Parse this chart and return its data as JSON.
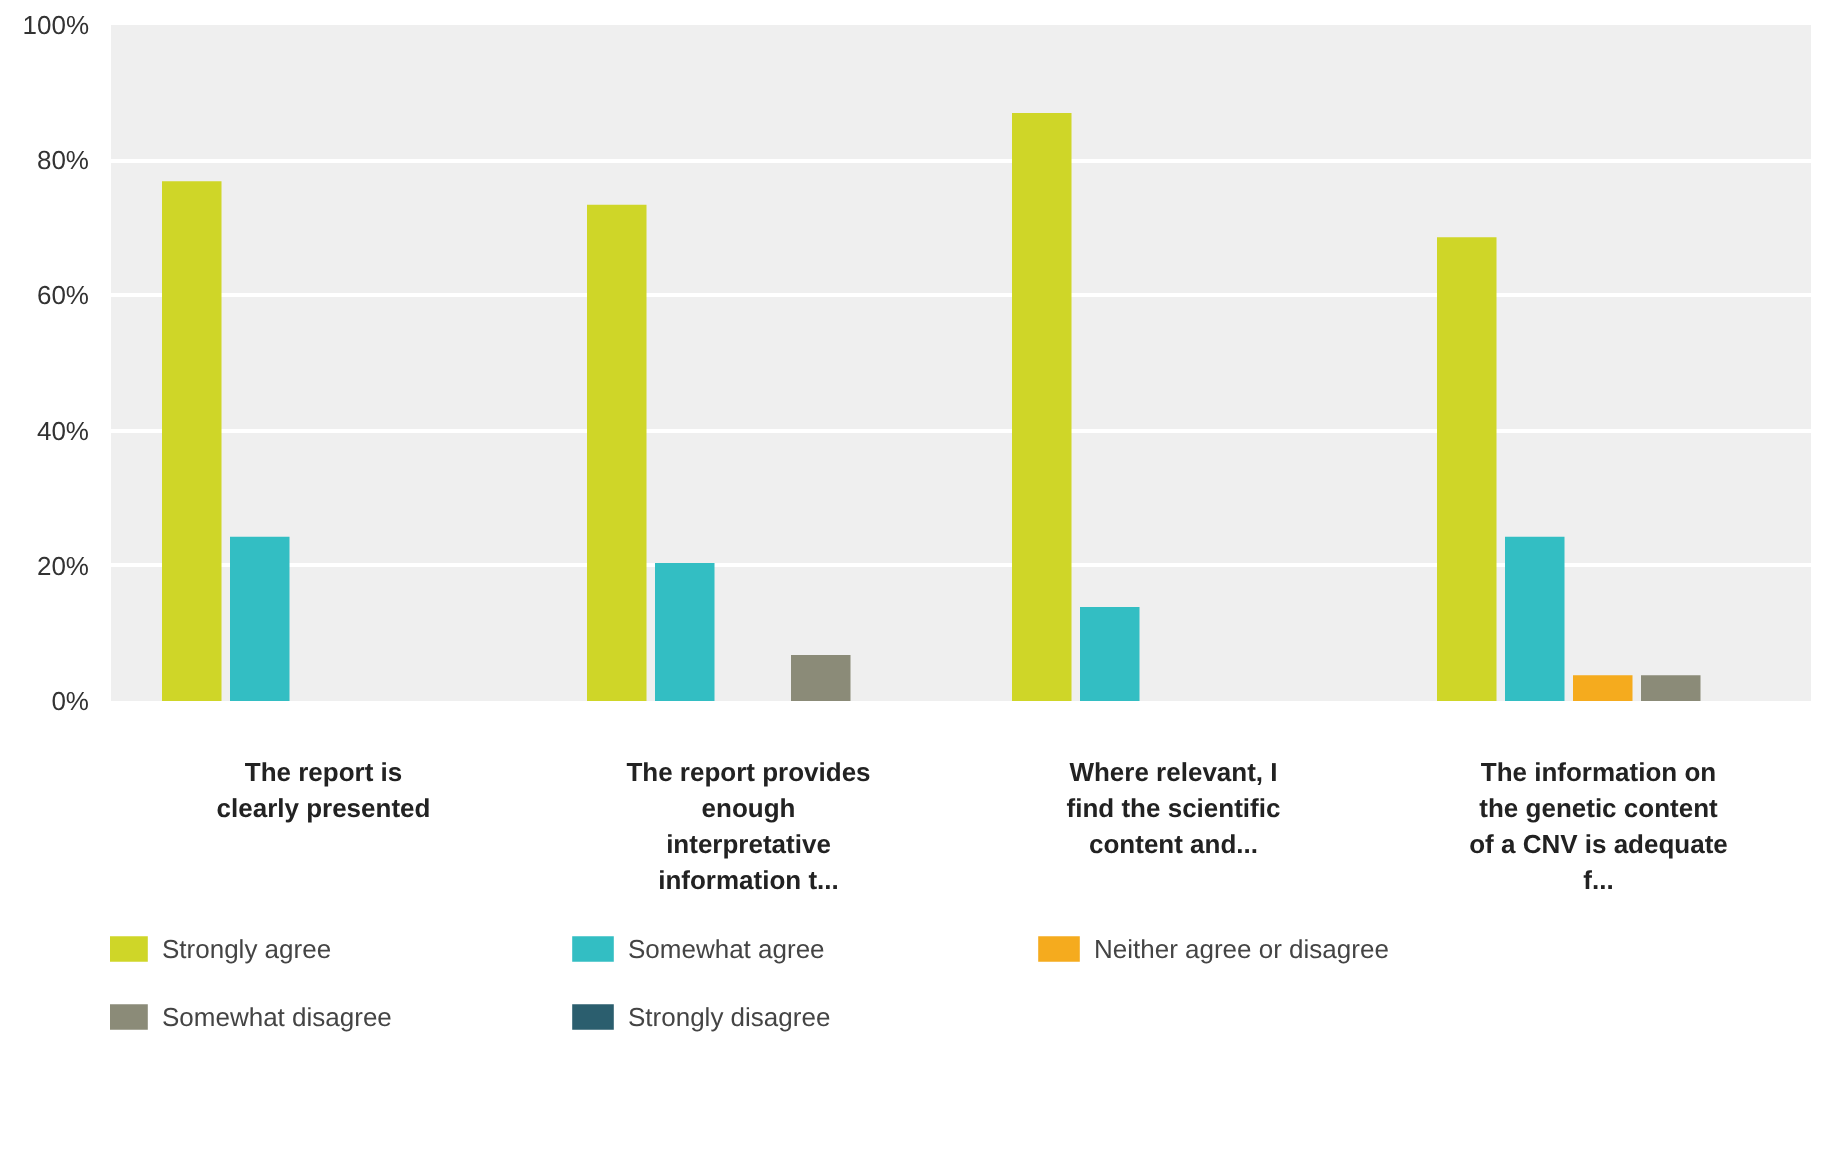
{
  "chart_data": {
    "type": "bar",
    "categories": [
      "The report is clearly presented",
      "The report provides enough interpretative information t...",
      "Where relevant, I find the scientific content and...",
      "The information on the genetic content of a CNV is adequate f..."
    ],
    "series": [
      {
        "name": "Strongly agree",
        "color": "#cfd628",
        "values": [
          76.9,
          73.4,
          87,
          68.6
        ]
      },
      {
        "name": "Somewhat agree",
        "color": "#33bec3",
        "values": [
          24.3,
          20.4,
          13.9,
          24.3
        ]
      },
      {
        "name": "Neither agree or disagree",
        "color": "#f5ab1e",
        "values": [
          0,
          0,
          0,
          3.8
        ]
      },
      {
        "name": "Somewhat disagree",
        "color": "#8b8b78",
        "values": [
          0,
          6.8,
          0,
          3.8
        ]
      },
      {
        "name": "Strongly disagree",
        "color": "#2b5e6e",
        "values": [
          0,
          0,
          0,
          0
        ]
      }
    ],
    "ylim": [
      0,
      100
    ],
    "yticks": [
      {
        "value": 0,
        "label": "0%"
      },
      {
        "value": 20,
        "label": "20%"
      },
      {
        "value": 40,
        "label": "40%"
      },
      {
        "value": 60,
        "label": "60%"
      },
      {
        "value": 80,
        "label": "80%"
      },
      {
        "value": 100,
        "label": "100%"
      }
    ],
    "grid": "y",
    "legend": "bottom"
  }
}
